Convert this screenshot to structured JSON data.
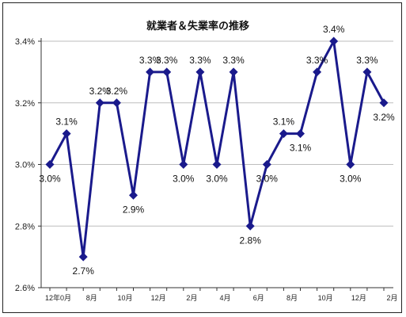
{
  "chart_data": {
    "type": "line",
    "title": "就業者＆失業率の推移",
    "xlabel": "",
    "ylabel": "",
    "ylim": [
      2.6,
      3.4
    ],
    "yticks": [
      "2.6%",
      "2.8%",
      "3.0%",
      "3.2%",
      "3.4%"
    ],
    "ytick_values": [
      2.6,
      2.8,
      3.0,
      3.2,
      3.4
    ],
    "x_tick_labels": [
      {
        "index": 1,
        "label": "12年0月"
      },
      {
        "index": 3,
        "label": "8月"
      },
      {
        "index": 5,
        "label": "10月"
      },
      {
        "index": 7,
        "label": "12月"
      },
      {
        "index": 9,
        "label": "2月"
      },
      {
        "index": 11,
        "label": "4月"
      },
      {
        "index": 13,
        "label": "6月"
      },
      {
        "index": 15,
        "label": "8月"
      },
      {
        "index": 17,
        "label": "10月"
      },
      {
        "index": 19,
        "label": "12月"
      },
      {
        "index": 21,
        "label": "2月"
      }
    ],
    "series": [
      {
        "values": [
          3.0,
          3.1,
          2.7,
          3.2,
          3.2,
          2.9,
          3.3,
          3.3,
          3.0,
          3.3,
          3.0,
          3.3,
          2.8,
          3.0,
          3.1,
          3.1,
          3.3,
          3.4,
          3.0,
          3.3,
          3.2
        ],
        "labels": [
          "3.0%",
          "3.1%",
          "2.7%",
          "3.2%",
          "3.2%",
          "2.9%",
          "3.3%",
          "3.3%",
          "3.0%",
          "3.3%",
          "3.0%",
          "3.3%",
          "2.8%",
          "3.0%",
          "3.1%",
          "3.1%",
          "3.3%",
          "3.4%",
          "3.0%",
          "3.3%",
          "3.2%"
        ],
        "label_pos": [
          "below",
          "above",
          "below",
          "above",
          "above",
          "below",
          "above",
          "above",
          "below",
          "above",
          "below",
          "above",
          "below",
          "below",
          "above",
          "below",
          "above",
          "above",
          "below",
          "above",
          "below"
        ]
      }
    ],
    "line_color": "#1a1a8c",
    "grid": true,
    "legend": "none"
  }
}
